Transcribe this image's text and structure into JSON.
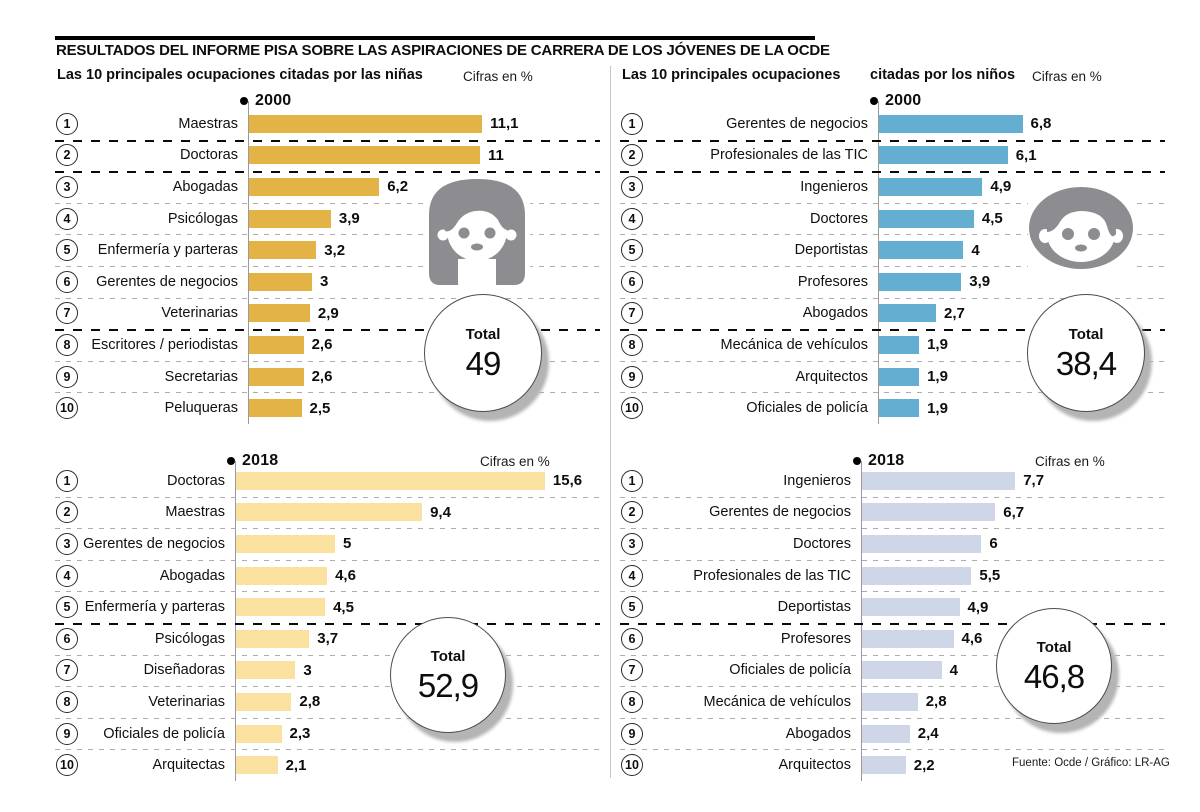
{
  "header": {
    "title": "RESULTADOS DEL INFORME PISA SOBRE LAS ASPIRACIONES DE CARRERA DE LOS JÓVENES DE LA OCDE",
    "subtitle_left_bold": "Las 10 principales ocupaciones citadas por las niñas",
    "subtitle_left_note": "Cifras en %",
    "subtitle_right_bold_1": "Las 10 principales ocupaciones",
    "subtitle_right_bold_2": "citadas por los niños",
    "subtitle_right_note": "Cifras en %"
  },
  "footer": {
    "source": "Fuente: Ocde / Gráfico: LR-AG"
  },
  "colors": {
    "girls_2000_bar": "#e3b445",
    "girls_2018_bar": "#fbe1a0",
    "boys_2000_bar": "#64aed2",
    "boys_2018_bar": "#cfd6e8",
    "icon_gray": "#8d8d91",
    "separator_light": "#acacac",
    "separator_dark": "#0a0a0a"
  },
  "chart_data": [
    {
      "type": "bar",
      "id": "girls-2000",
      "title": "2000 — niñas",
      "year_label": "2000",
      "unit": "%",
      "xlim": [
        0,
        12
      ],
      "bar_color": "#e3b445",
      "total_label": "Total",
      "total_display": "49",
      "total_value": 49,
      "dark_separators_after_rank": [
        1,
        2,
        7
      ],
      "rows": [
        {
          "rank": "1",
          "label": "Maestras",
          "value": 11.1,
          "display": "11,1"
        },
        {
          "rank": "2",
          "label": "Doctoras",
          "value": 11,
          "display": "11"
        },
        {
          "rank": "3",
          "label": "Abogadas",
          "value": 6.2,
          "display": "6,2"
        },
        {
          "rank": "4",
          "label": "Psicólogas",
          "value": 3.9,
          "display": "3,9"
        },
        {
          "rank": "5",
          "label": "Enfermería y parteras",
          "value": 3.2,
          "display": "3,2"
        },
        {
          "rank": "6",
          "label": "Gerentes de negocios",
          "value": 3,
          "display": "3"
        },
        {
          "rank": "7",
          "label": "Veterinarias",
          "value": 2.9,
          "display": "2,9"
        },
        {
          "rank": "8",
          "label": "Escritores / periodistas",
          "value": 2.6,
          "display": "2,6"
        },
        {
          "rank": "9",
          "label": "Secretarias",
          "value": 2.6,
          "display": "2,6"
        },
        {
          "rank": "10",
          "label": "Peluqueras",
          "value": 2.5,
          "display": "2,5"
        }
      ]
    },
    {
      "type": "bar",
      "id": "boys-2000",
      "title": "2000 — niños",
      "year_label": "2000",
      "unit": "%",
      "xlim": [
        0,
        7
      ],
      "bar_color": "#64aed2",
      "total_label": "Total",
      "total_display": "38,4",
      "total_value": 38.4,
      "dark_separators_after_rank": [
        1,
        2,
        7
      ],
      "rows": [
        {
          "rank": "1",
          "label": "Gerentes de negocios",
          "value": 6.8,
          "display": "6,8"
        },
        {
          "rank": "2",
          "label": "Profesionales de las TIC",
          "value": 6.1,
          "display": "6,1"
        },
        {
          "rank": "3",
          "label": "Ingenieros",
          "value": 4.9,
          "display": "4,9"
        },
        {
          "rank": "4",
          "label": "Doctores",
          "value": 4.5,
          "display": "4,5"
        },
        {
          "rank": "5",
          "label": "Deportistas",
          "value": 4,
          "display": "4"
        },
        {
          "rank": "6",
          "label": "Profesores",
          "value": 3.9,
          "display": "3,9"
        },
        {
          "rank": "7",
          "label": "Abogados",
          "value": 2.7,
          "display": "2,7"
        },
        {
          "rank": "8",
          "label": "Mecánica de vehículos",
          "value": 1.9,
          "display": "1,9"
        },
        {
          "rank": "9",
          "label": "Arquitectos",
          "value": 1.9,
          "display": "1,9"
        },
        {
          "rank": "10",
          "label": "Oficiales de policía",
          "value": 1.9,
          "display": "1,9"
        }
      ]
    },
    {
      "type": "bar",
      "id": "girls-2018",
      "title": "2018 — niñas",
      "year_label": "2018",
      "cifras_label": "Cifras en %",
      "unit": "%",
      "xlim": [
        0,
        16
      ],
      "bar_color": "#fbe1a0",
      "total_label": "Total",
      "total_display": "52,9",
      "total_value": 52.9,
      "dark_separators_after_rank": [
        5
      ],
      "rows": [
        {
          "rank": "1",
          "label": "Doctoras",
          "value": 15.6,
          "display": "15,6"
        },
        {
          "rank": "2",
          "label": "Maestras",
          "value": 9.4,
          "display": "9,4"
        },
        {
          "rank": "3",
          "label": "Gerentes de negocios",
          "value": 5,
          "display": "5"
        },
        {
          "rank": "4",
          "label": "Abogadas",
          "value": 4.6,
          "display": "4,6"
        },
        {
          "rank": "5",
          "label": "Enfermería y parteras",
          "value": 4.5,
          "display": "4,5"
        },
        {
          "rank": "6",
          "label": "Psicólogas",
          "value": 3.7,
          "display": "3,7"
        },
        {
          "rank": "7",
          "label": "Diseñadoras",
          "value": 3,
          "display": "3"
        },
        {
          "rank": "8",
          "label": "Veterinarias",
          "value": 2.8,
          "display": "2,8"
        },
        {
          "rank": "9",
          "label": "Oficiales de policía",
          "value": 2.3,
          "display": "2,3"
        },
        {
          "rank": "10",
          "label": "Arquitectas",
          "value": 2.1,
          "display": "2,1"
        }
      ]
    },
    {
      "type": "bar",
      "id": "boys-2018",
      "title": "2018 — niños",
      "year_label": "2018",
      "cifras_label": "Cifras en %",
      "unit": "%",
      "xlim": [
        0,
        8
      ],
      "bar_color": "#cfd6e8",
      "total_label": "Total",
      "total_display": "46,8",
      "total_value": 46.8,
      "dark_separators_after_rank": [
        5
      ],
      "rows": [
        {
          "rank": "1",
          "label": "Ingenieros",
          "value": 7.7,
          "display": "7,7"
        },
        {
          "rank": "2",
          "label": "Gerentes de negocios",
          "value": 6.7,
          "display": "6,7"
        },
        {
          "rank": "3",
          "label": "Doctores",
          "value": 6,
          "display": "6"
        },
        {
          "rank": "4",
          "label": "Profesionales de las TIC",
          "value": 5.5,
          "display": "5,5"
        },
        {
          "rank": "5",
          "label": "Deportistas",
          "value": 4.9,
          "display": "4,9"
        },
        {
          "rank": "6",
          "label": "Profesores",
          "value": 4.6,
          "display": "4,6"
        },
        {
          "rank": "7",
          "label": "Oficiales de policía",
          "value": 4,
          "display": "4"
        },
        {
          "rank": "8",
          "label": "Mecánica de vehículos",
          "value": 2.8,
          "display": "2,8"
        },
        {
          "rank": "9",
          "label": "Abogados",
          "value": 2.4,
          "display": "2,4"
        },
        {
          "rank": "10",
          "label": "Arquitectos",
          "value": 2.2,
          "display": "2,2"
        }
      ]
    }
  ]
}
